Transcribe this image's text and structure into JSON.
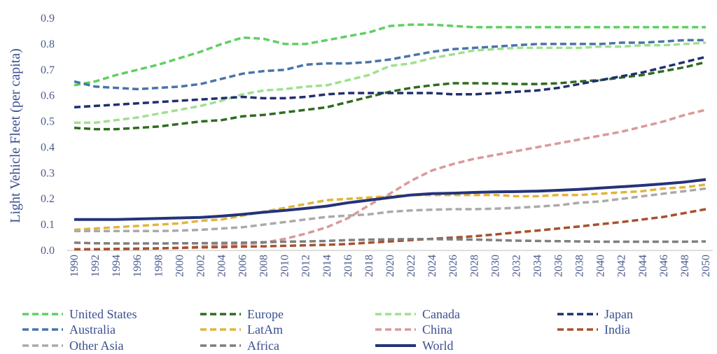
{
  "chart_data": {
    "type": "line",
    "ylabel": "Light Vehicle Fleet (per capita)",
    "xlabel": "",
    "ylim": [
      0,
      0.9
    ],
    "yticks": [
      "0.0",
      "0.1",
      "0.2",
      "0.3",
      "0.4",
      "0.5",
      "0.6",
      "0.7",
      "0.8",
      "0.9"
    ],
    "x": [
      1990,
      1992,
      1994,
      1996,
      1998,
      2000,
      2002,
      2004,
      2006,
      2008,
      2010,
      2012,
      2014,
      2016,
      2018,
      2020,
      2022,
      2024,
      2026,
      2028,
      2030,
      2032,
      2034,
      2036,
      2038,
      2040,
      2042,
      2044,
      2046,
      2048,
      2050
    ],
    "grid": false,
    "legend_position": "bottom",
    "series": [
      {
        "name": "United States",
        "color": "#5fcf63",
        "dash": true,
        "values": [
          0.64,
          0.655,
          0.68,
          0.7,
          0.72,
          0.745,
          0.77,
          0.8,
          0.825,
          0.82,
          0.8,
          0.8,
          0.815,
          0.83,
          0.845,
          0.87,
          0.875,
          0.875,
          0.87,
          0.865,
          0.865,
          0.865,
          0.865,
          0.865,
          0.865,
          0.865,
          0.865,
          0.865,
          0.865,
          0.865,
          0.865
        ]
      },
      {
        "name": "Europe",
        "color": "#2f6b1f",
        "dash": true,
        "values": [
          0.475,
          0.47,
          0.47,
          0.475,
          0.48,
          0.49,
          0.5,
          0.505,
          0.52,
          0.525,
          0.535,
          0.545,
          0.555,
          0.575,
          0.595,
          0.615,
          0.63,
          0.64,
          0.648,
          0.648,
          0.647,
          0.645,
          0.645,
          0.648,
          0.655,
          0.66,
          0.67,
          0.68,
          0.695,
          0.71,
          0.73
        ]
      },
      {
        "name": "Canada",
        "color": "#9fe08e",
        "dash": true,
        "values": [
          0.495,
          0.495,
          0.505,
          0.515,
          0.53,
          0.545,
          0.56,
          0.58,
          0.605,
          0.62,
          0.625,
          0.635,
          0.64,
          0.66,
          0.68,
          0.715,
          0.725,
          0.745,
          0.76,
          0.775,
          0.78,
          0.785,
          0.785,
          0.785,
          0.785,
          0.79,
          0.79,
          0.795,
          0.795,
          0.8,
          0.805
        ]
      },
      {
        "name": "Japan",
        "color": "#1f2f6e",
        "dash": true,
        "values": [
          0.555,
          0.56,
          0.565,
          0.57,
          0.575,
          0.58,
          0.585,
          0.59,
          0.595,
          0.59,
          0.59,
          0.595,
          0.605,
          0.61,
          0.61,
          0.61,
          0.61,
          0.61,
          0.605,
          0.605,
          0.61,
          0.615,
          0.62,
          0.63,
          0.645,
          0.66,
          0.675,
          0.69,
          0.71,
          0.73,
          0.75
        ]
      },
      {
        "name": "Australia",
        "color": "#4a74a8",
        "dash": true,
        "values": [
          0.655,
          0.635,
          0.63,
          0.625,
          0.63,
          0.635,
          0.645,
          0.665,
          0.685,
          0.695,
          0.7,
          0.72,
          0.725,
          0.725,
          0.73,
          0.74,
          0.755,
          0.77,
          0.78,
          0.785,
          0.79,
          0.795,
          0.8,
          0.8,
          0.8,
          0.8,
          0.805,
          0.805,
          0.81,
          0.815,
          0.815
        ]
      },
      {
        "name": "LatAm",
        "color": "#e2b43a",
        "dash": true,
        "values": [
          0.08,
          0.085,
          0.09,
          0.095,
          0.1,
          0.105,
          0.115,
          0.12,
          0.135,
          0.15,
          0.165,
          0.18,
          0.195,
          0.2,
          0.205,
          0.21,
          0.215,
          0.215,
          0.215,
          0.215,
          0.215,
          0.21,
          0.21,
          0.215,
          0.215,
          0.22,
          0.225,
          0.23,
          0.24,
          0.245,
          0.255
        ]
      },
      {
        "name": "China",
        "color": "#d99a98",
        "dash": true,
        "values": [
          0.005,
          0.005,
          0.005,
          0.005,
          0.008,
          0.01,
          0.015,
          0.02,
          0.025,
          0.03,
          0.045,
          0.065,
          0.09,
          0.125,
          0.175,
          0.22,
          0.27,
          0.31,
          0.335,
          0.355,
          0.37,
          0.385,
          0.4,
          0.415,
          0.43,
          0.445,
          0.46,
          0.48,
          0.5,
          0.525,
          0.545
        ]
      },
      {
        "name": "India",
        "color": "#a8502c",
        "dash": true,
        "values": [
          0.005,
          0.005,
          0.006,
          0.007,
          0.008,
          0.01,
          0.012,
          0.013,
          0.015,
          0.016,
          0.018,
          0.02,
          0.022,
          0.025,
          0.03,
          0.035,
          0.04,
          0.045,
          0.05,
          0.055,
          0.062,
          0.07,
          0.077,
          0.085,
          0.093,
          0.102,
          0.11,
          0.12,
          0.13,
          0.145,
          0.16
        ]
      },
      {
        "name": "Other Asia",
        "color": "#aaaaaa",
        "dash": true,
        "values": [
          0.075,
          0.075,
          0.075,
          0.075,
          0.075,
          0.077,
          0.08,
          0.085,
          0.09,
          0.1,
          0.11,
          0.12,
          0.13,
          0.135,
          0.14,
          0.15,
          0.155,
          0.158,
          0.16,
          0.16,
          0.162,
          0.165,
          0.17,
          0.175,
          0.185,
          0.19,
          0.2,
          0.21,
          0.22,
          0.23,
          0.24
        ]
      },
      {
        "name": "Africa",
        "color": "#7f7f7f",
        "dash": true,
        "values": [
          0.03,
          0.028,
          0.027,
          0.027,
          0.027,
          0.028,
          0.028,
          0.029,
          0.03,
          0.032,
          0.034,
          0.035,
          0.037,
          0.04,
          0.042,
          0.043,
          0.044,
          0.044,
          0.043,
          0.042,
          0.04,
          0.038,
          0.037,
          0.036,
          0.035,
          0.034,
          0.034,
          0.034,
          0.034,
          0.034,
          0.035
        ]
      },
      {
        "name": "World",
        "color": "#24337a",
        "dash": false,
        "values": [
          0.12,
          0.12,
          0.12,
          0.122,
          0.124,
          0.126,
          0.128,
          0.133,
          0.14,
          0.148,
          0.155,
          0.163,
          0.172,
          0.185,
          0.195,
          0.205,
          0.215,
          0.22,
          0.222,
          0.225,
          0.227,
          0.228,
          0.23,
          0.233,
          0.237,
          0.242,
          0.247,
          0.252,
          0.258,
          0.265,
          0.275
        ]
      }
    ]
  }
}
